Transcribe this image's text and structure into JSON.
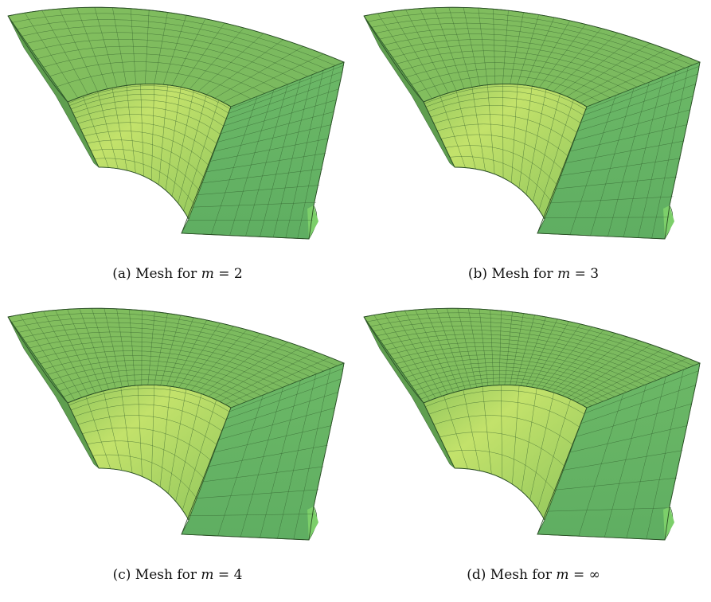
{
  "figure": {
    "panels": [
      {
        "id": "a",
        "label": "(a)",
        "text": "Mesh for",
        "variable": "m",
        "relation": "=",
        "value": "2",
        "density": 2
      },
      {
        "id": "b",
        "label": "(b)",
        "text": "Mesh for",
        "variable": "m",
        "relation": "=",
        "value": "3",
        "density": 3
      },
      {
        "id": "c",
        "label": "(c)",
        "text": "Mesh for",
        "variable": "m",
        "relation": "=",
        "value": "4",
        "density": 4
      },
      {
        "id": "d",
        "label": "(d)",
        "text": "Mesh for",
        "variable": "m",
        "relation": "=",
        "value": "∞",
        "density": 5
      }
    ],
    "colors": {
      "top_face": "#79b95f",
      "inner_face_light": "#c3e26b",
      "inner_face_dark": "#8fc55c",
      "side_face": "#5fae62",
      "mesh_line": "#2e5a2a"
    }
  }
}
